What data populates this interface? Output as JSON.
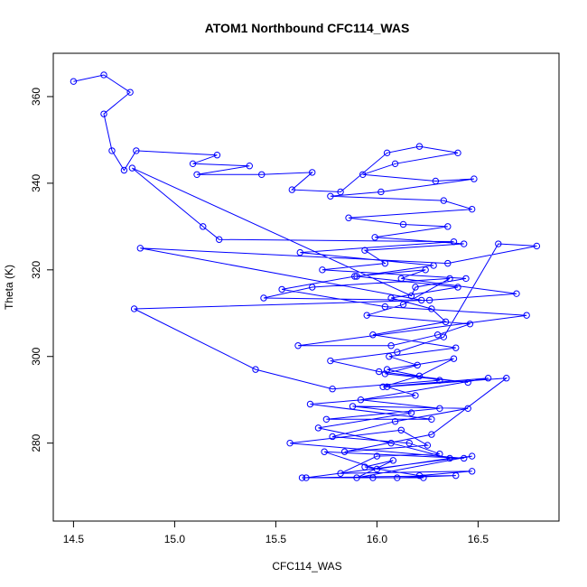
{
  "chart_data": {
    "type": "scatter",
    "title": "ATOM1 Northbound CFC114_WAS",
    "xlabel": "CFC114_WAS",
    "ylabel": "Theta (K)",
    "xlim": [
      14.4,
      16.9
    ],
    "ylim": [
      262,
      370
    ],
    "xticks": [
      14.5,
      15.0,
      15.5,
      16.0,
      16.5
    ],
    "yticks": [
      280,
      300,
      320,
      340,
      360
    ],
    "grid": false,
    "legend": "none",
    "style": "line-with-open-circles",
    "color": "#0000ff",
    "series": [
      {
        "x": [
          14.5,
          14.65,
          14.78,
          14.65,
          14.69,
          14.75,
          14.81,
          15.21,
          15.09,
          15.37,
          15.11,
          15.43,
          15.68,
          15.58,
          15.82,
          16.05,
          16.21,
          16.4,
          16.09,
          15.93,
          16.29,
          16.48,
          16.02,
          15.77,
          16.33,
          16.47,
          15.86,
          16.13,
          16.35,
          15.99,
          16.43,
          15.94,
          16.04,
          15.73,
          16.44,
          16.19,
          16.17,
          14.79,
          15.14,
          15.22,
          16.38,
          15.62,
          16.28,
          15.9,
          16.4,
          16.07,
          16.27,
          16.34,
          15.98,
          16.39,
          16.06,
          16.2,
          16.04,
          16.45,
          16.01,
          15.77,
          16.1,
          16.33,
          16.6,
          16.79,
          16.35,
          14.83,
          16.22,
          15.44,
          15.68,
          16.36,
          16.13,
          15.95,
          16.46,
          16.3,
          16.07,
          15.61,
          16.74,
          16.04,
          15.53,
          15.89,
          16.24,
          16.12,
          16.69,
          16.26,
          14.8,
          15.4,
          15.78,
          16.31,
          16.05,
          16.38,
          16.21,
          16.03,
          16.55,
          15.92,
          16.31,
          15.75,
          16.27,
          15.67,
          16.19,
          16.05,
          16.64,
          16.27,
          15.84,
          16.25,
          16.12,
          15.57,
          16.43,
          15.74,
          16.0,
          16.36,
          16.07,
          15.71,
          16.17,
          15.88,
          16.45,
          16.09,
          15.78,
          16.16,
          16.31,
          16.0,
          15.82,
          16.47,
          16.21,
          15.94,
          16.08,
          15.9,
          16.47,
          15.65,
          15.98,
          16.1,
          16.39,
          15.63,
          16.23
        ],
        "y": [
          363.5,
          365,
          361,
          356,
          347.5,
          343,
          347.5,
          346.5,
          344.5,
          344,
          342,
          342,
          342.5,
          338.5,
          338,
          347,
          348.5,
          347,
          344.5,
          342,
          340.5,
          341,
          338,
          337,
          336,
          334,
          332,
          330.5,
          330,
          327.5,
          326,
          324.5,
          321.5,
          320,
          318,
          316,
          314,
          343.5,
          330,
          327,
          326.5,
          324,
          321,
          318.5,
          316,
          313.5,
          311,
          308,
          305,
          302,
          300,
          298,
          296,
          294,
          296.5,
          299,
          301,
          304.5,
          326,
          325.5,
          321.5,
          325,
          313,
          313.5,
          316,
          318,
          312,
          309.5,
          307.5,
          305,
          302.5,
          302.5,
          309.5,
          311.5,
          315.5,
          318.5,
          320,
          318,
          314.5,
          313,
          311,
          297,
          292.5,
          294.5,
          297,
          299.5,
          295.5,
          293,
          295,
          290,
          288,
          285.5,
          285.5,
          289,
          291,
          293,
          295,
          282,
          278,
          279.5,
          283,
          280,
          276.5,
          278,
          274,
          276.5,
          280,
          283.5,
          287,
          288.5,
          288,
          285,
          281.5,
          280,
          277.5,
          277,
          273,
          273.5,
          272.5,
          274.5,
          276,
          272,
          277,
          272,
          272,
          272,
          272.5,
          272,
          272
        ]
      }
    ]
  }
}
